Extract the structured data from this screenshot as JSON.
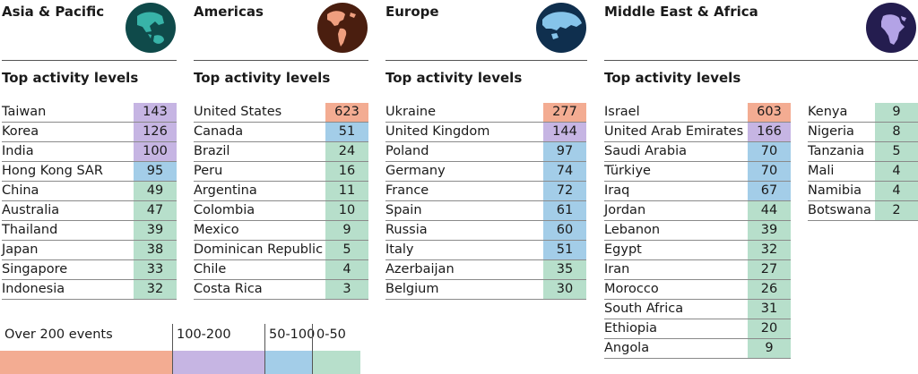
{
  "colors": {
    "over_200": "#f3ac92",
    "r100_200": "#c6b5e3",
    "r50_100": "#a3cde8",
    "r0_50": "#b7dfcb"
  },
  "legend": [
    {
      "label": "Over 200 events",
      "color": "#f3ac92"
    },
    {
      "label": "100-200",
      "color": "#c6b5e3"
    },
    {
      "label": "50-100",
      "color": "#a3cde8"
    },
    {
      "label": "0-50",
      "color": "#b7dfcb"
    }
  ],
  "subheading": "Top activity levels",
  "chart_data": {
    "type": "table",
    "regions": [
      {
        "name": "Asia & Pacific",
        "globe_icon": "globe-asia-pacific-icon",
        "rows": [
          {
            "country": "Taiwan",
            "value": 143
          },
          {
            "country": "Korea",
            "value": 126
          },
          {
            "country": "India",
            "value": 100
          },
          {
            "country": "Hong Kong SAR",
            "value": 95
          },
          {
            "country": "China",
            "value": 49
          },
          {
            "country": "Australia",
            "value": 47
          },
          {
            "country": "Thailand",
            "value": 39
          },
          {
            "country": "Japan",
            "value": 38
          },
          {
            "country": "Singapore",
            "value": 33
          },
          {
            "country": "Indonesia",
            "value": 32
          }
        ]
      },
      {
        "name": "Americas",
        "globe_icon": "globe-americas-icon",
        "rows": [
          {
            "country": "United States",
            "value": 623
          },
          {
            "country": "Canada",
            "value": 51
          },
          {
            "country": "Brazil",
            "value": 24
          },
          {
            "country": "Peru",
            "value": 16
          },
          {
            "country": "Argentina",
            "value": 11
          },
          {
            "country": "Colombia",
            "value": 10
          },
          {
            "country": "Mexico",
            "value": 9
          },
          {
            "country": "Dominican Republic",
            "value": 5
          },
          {
            "country": "Chile",
            "value": 4
          },
          {
            "country": "Costa Rica",
            "value": 3
          }
        ]
      },
      {
        "name": "Europe",
        "globe_icon": "globe-europe-icon",
        "rows": [
          {
            "country": "Ukraine",
            "value": 277
          },
          {
            "country": "United Kingdom",
            "value": 144
          },
          {
            "country": "Poland",
            "value": 97
          },
          {
            "country": "Germany",
            "value": 74
          },
          {
            "country": "France",
            "value": 72
          },
          {
            "country": "Spain",
            "value": 61
          },
          {
            "country": "Russia",
            "value": 60
          },
          {
            "country": "Italy",
            "value": 51
          },
          {
            "country": "Azerbaijan",
            "value": 35
          },
          {
            "country": "Belgium",
            "value": 30
          }
        ]
      },
      {
        "name": "Middle East & Africa",
        "globe_icon": "globe-middle-east-africa-icon",
        "rows": [
          {
            "country": "Israel",
            "value": 603
          },
          {
            "country": "United Arab Emirates",
            "value": 166
          },
          {
            "country": "Saudi Arabia",
            "value": 70
          },
          {
            "country": "Türkiye",
            "value": 70
          },
          {
            "country": "Iraq",
            "value": 67
          },
          {
            "country": "Jordan",
            "value": 44
          },
          {
            "country": "Lebanon",
            "value": 39
          },
          {
            "country": "Egypt",
            "value": 32
          },
          {
            "country": "Iran",
            "value": 27
          },
          {
            "country": "Morocco",
            "value": 26
          },
          {
            "country": "South Africa",
            "value": 31
          },
          {
            "country": "Ethiopia",
            "value": 20
          },
          {
            "country": "Angola",
            "value": 9
          }
        ],
        "rows_extra": [
          {
            "country": "Kenya",
            "value": 9
          },
          {
            "country": "Nigeria",
            "value": 8
          },
          {
            "country": "Tanzania",
            "value": 5
          },
          {
            "country": "Mali",
            "value": 4
          },
          {
            "country": "Namibia",
            "value": 4
          },
          {
            "country": "Botswana",
            "value": 2
          }
        ]
      }
    ]
  }
}
